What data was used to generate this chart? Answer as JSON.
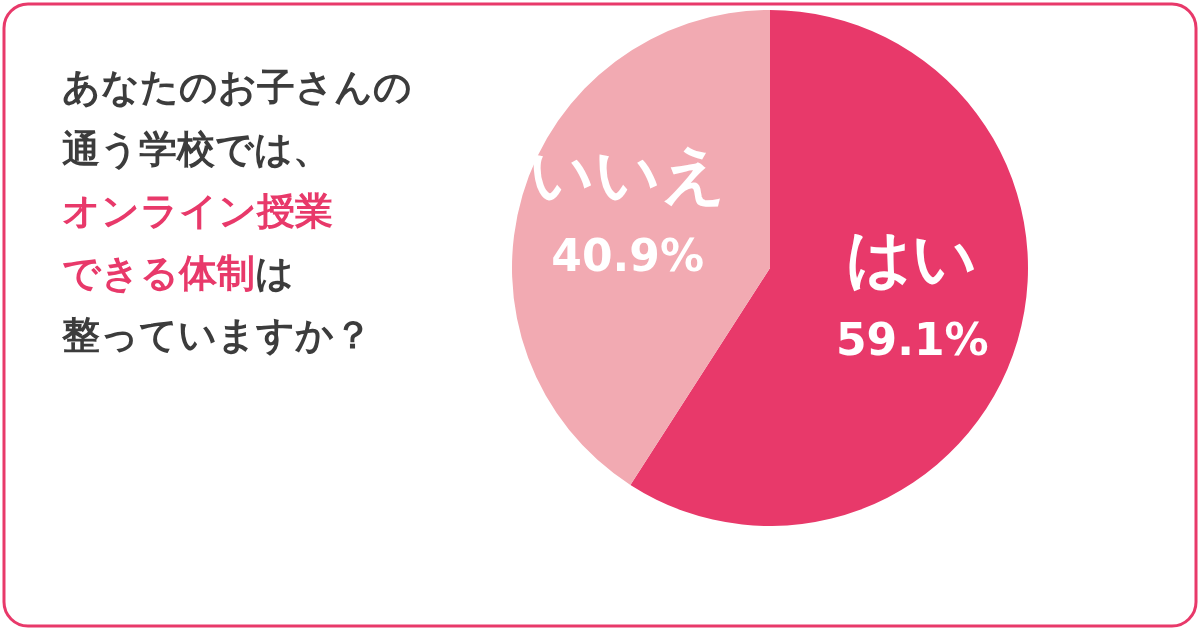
{
  "chart_data": {
    "type": "pie",
    "title": "あなたのお子さんの通う学校では、オンライン授業できる体制は整っていますか？",
    "categories": [
      "はい",
      "いいえ"
    ],
    "values": [
      59.1,
      40.9
    ],
    "colors": [
      "#e8396a",
      "#f2aab2"
    ],
    "value_labels": [
      "59.1%",
      "40.9%"
    ]
  }
}
